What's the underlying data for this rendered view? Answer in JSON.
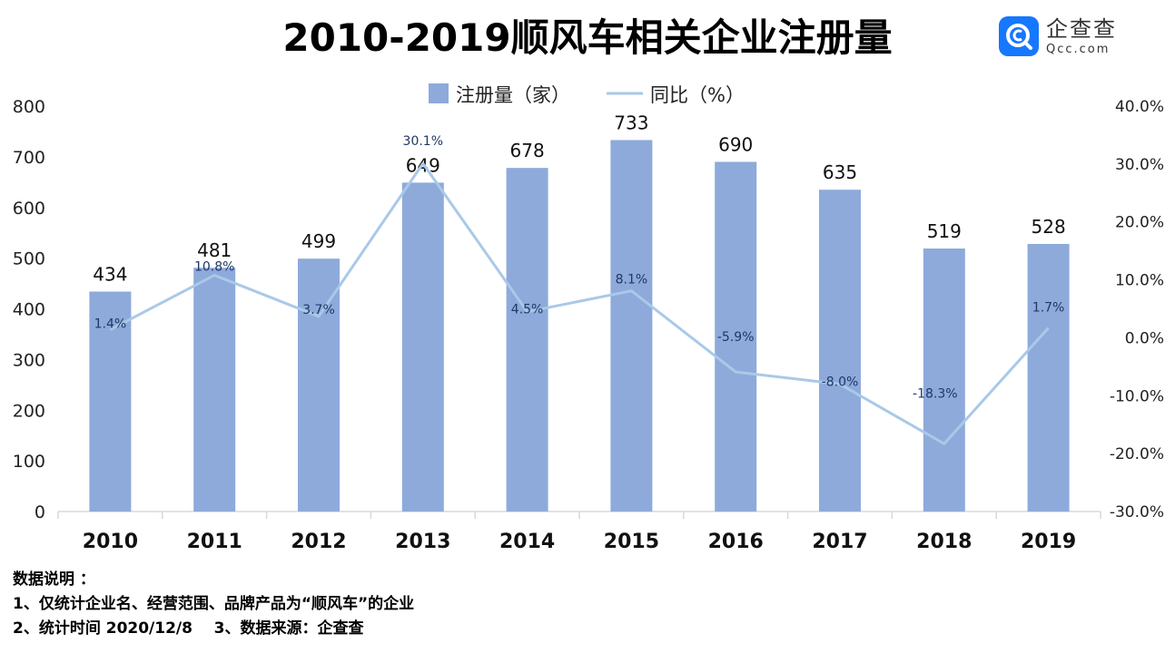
{
  "title": "2010-2019顺风车相关企业注册量",
  "logo": {
    "name_cn": "企查查",
    "name_en": "Qcc.com"
  },
  "colors": {
    "bar": "#8eaadb",
    "line": "#a9c9e8",
    "line_label": "#1f3864",
    "axis": "#d9d9d9"
  },
  "chart_data": {
    "type": "bar",
    "categories": [
      "2010",
      "2011",
      "2012",
      "2013",
      "2014",
      "2015",
      "2016",
      "2017",
      "2018",
      "2019"
    ],
    "series": [
      {
        "name": "注册量（家）",
        "type": "bar",
        "axis": "left",
        "values": [
          434,
          481,
          499,
          649,
          678,
          733,
          690,
          635,
          519,
          528
        ],
        "labels": [
          "434",
          "481",
          "499",
          "649",
          "678",
          "733",
          "690",
          "635",
          "519",
          "528"
        ]
      },
      {
        "name": "同比（%）",
        "type": "line",
        "axis": "right",
        "values": [
          1.4,
          10.8,
          3.7,
          30.1,
          4.5,
          8.1,
          -5.9,
          -8.0,
          -18.3,
          1.7
        ],
        "labels": [
          "1.4%",
          "10.8%",
          "3.7%",
          "30.1%",
          "4.5%",
          "8.1%",
          "-5.9%",
          "-8.0%",
          "-18.3%",
          "1.7%"
        ]
      }
    ],
    "y_left": {
      "min": 0,
      "max": 800,
      "ticks": [
        "0",
        "100",
        "200",
        "300",
        "400",
        "500",
        "600",
        "700",
        "800"
      ]
    },
    "y_right": {
      "min": -30,
      "max": 40,
      "ticks": [
        "-30.0%",
        "-20.0%",
        "-10.0%",
        "0.0%",
        "10.0%",
        "20.0%",
        "30.0%",
        "40.0%"
      ]
    },
    "legend": [
      "注册量（家）",
      "同比（%）"
    ],
    "legend_position": "top-center"
  },
  "notes": {
    "heading": "数据说明 ：",
    "line1": "1、仅统计企业名、经营范围、品牌产品为“顺风车”的企业",
    "line2": "2、统计时间 2020/12/8    3、数据来源：企查查"
  }
}
